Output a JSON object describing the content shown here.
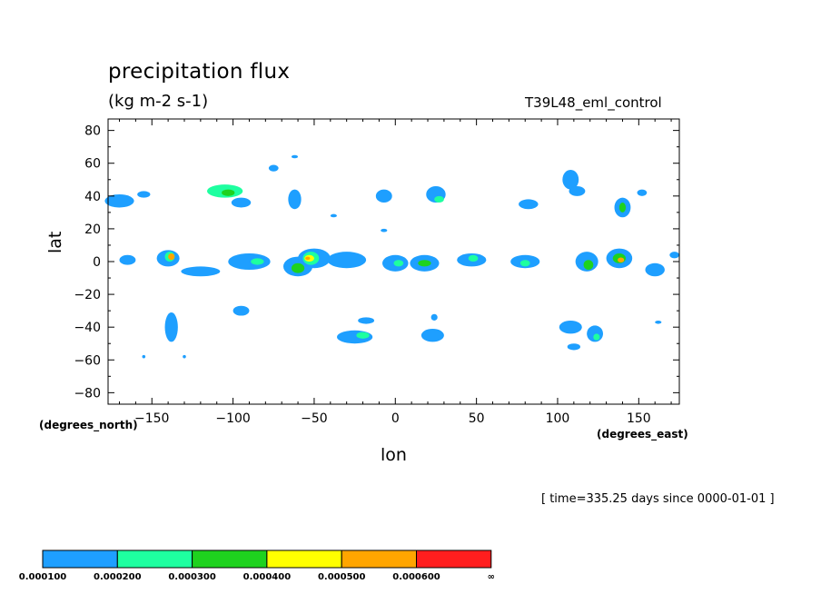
{
  "header": {
    "title": "precipitation flux",
    "units": "(kg m-2 s-1)",
    "experiment": "T39L48_eml_control"
  },
  "footer": {
    "time_label": "[ time=335.25 days since 0000-01-01 ]"
  },
  "colorbar": {
    "colors": [
      "#1e9fff",
      "#1effa0",
      "#1ed21e",
      "#ffff00",
      "#ffa500",
      "#ff1e1e"
    ],
    "labels": [
      "0.000100",
      "0.000200",
      "0.000300",
      "0.000400",
      "0.000500",
      "0.000600",
      "∞"
    ]
  },
  "chart_data": {
    "type": "heatmap",
    "title": "precipitation flux",
    "subtitle": "(kg m-2 s-1)",
    "xlabel": "lon",
    "ylabel": "lat",
    "x_units": "(degrees_east)",
    "y_units": "(degrees_north)",
    "xlim": [
      -177,
      175
    ],
    "ylim": [
      -87,
      87
    ],
    "x_ticks": [
      -150,
      -100,
      -50,
      0,
      50,
      100,
      150
    ],
    "y_ticks": [
      80,
      60,
      40,
      20,
      0,
      -20,
      -40,
      -60,
      -80
    ],
    "x_tick_labels": [
      "−150",
      "−100",
      "−50",
      "0",
      "50",
      "100",
      "150"
    ],
    "y_tick_labels": [
      "80",
      "60",
      "40",
      "20",
      "0",
      "−20",
      "−40",
      "−60",
      "−80"
    ],
    "contour_levels": [
      0.0001,
      0.0002,
      0.0003,
      0.0004,
      0.0005,
      0.0006
    ],
    "features": [
      {
        "lon": -170,
        "lat": 37,
        "rx": 9,
        "ry": 4,
        "level": 1
      },
      {
        "lon": -155,
        "lat": 41,
        "rx": 4,
        "ry": 2,
        "level": 1
      },
      {
        "lon": -105,
        "lat": 43,
        "rx": 11,
        "ry": 4,
        "level": 2
      },
      {
        "lon": -103,
        "lat": 42,
        "rx": 4,
        "ry": 2,
        "level": 3
      },
      {
        "lon": -95,
        "lat": 36,
        "rx": 6,
        "ry": 3,
        "level": 1
      },
      {
        "lon": -62,
        "lat": 38,
        "rx": 4,
        "ry": 6,
        "level": 1
      },
      {
        "lon": -75,
        "lat": 57,
        "rx": 3,
        "ry": 2,
        "level": 1
      },
      {
        "lon": -62,
        "lat": 64,
        "rx": 2,
        "ry": 1,
        "level": 1
      },
      {
        "lon": -7,
        "lat": 40,
        "rx": 5,
        "ry": 4,
        "level": 1
      },
      {
        "lon": 25,
        "lat": 41,
        "rx": 6,
        "ry": 5,
        "level": 1
      },
      {
        "lon": 27,
        "lat": 38,
        "rx": 3,
        "ry": 2,
        "level": 2
      },
      {
        "lon": 82,
        "lat": 35,
        "rx": 6,
        "ry": 3,
        "level": 1
      },
      {
        "lon": 108,
        "lat": 50,
        "rx": 5,
        "ry": 6,
        "level": 1
      },
      {
        "lon": 112,
        "lat": 43,
        "rx": 5,
        "ry": 3,
        "level": 1
      },
      {
        "lon": 140,
        "lat": 33,
        "rx": 5,
        "ry": 6,
        "level": 1
      },
      {
        "lon": 140,
        "lat": 33,
        "rx": 2,
        "ry": 3,
        "level": 3
      },
      {
        "lon": 152,
        "lat": 42,
        "rx": 3,
        "ry": 2,
        "level": 1
      },
      {
        "lon": -38,
        "lat": 28,
        "rx": 2,
        "ry": 1,
        "level": 1
      },
      {
        "lon": -7,
        "lat": 19,
        "rx": 2,
        "ry": 1,
        "level": 1
      },
      {
        "lon": -165,
        "lat": 1,
        "rx": 5,
        "ry": 3,
        "level": 1
      },
      {
        "lon": -140,
        "lat": 2,
        "rx": 7,
        "ry": 5,
        "level": 1
      },
      {
        "lon": -139,
        "lat": 3,
        "rx": 3,
        "ry": 3,
        "level": 2
      },
      {
        "lon": -138,
        "lat": 3,
        "rx": 2,
        "ry": 2,
        "level": 5
      },
      {
        "lon": -120,
        "lat": -6,
        "rx": 12,
        "ry": 3,
        "level": 1
      },
      {
        "lon": -90,
        "lat": 0,
        "rx": 13,
        "ry": 5,
        "level": 1
      },
      {
        "lon": -85,
        "lat": 0,
        "rx": 4,
        "ry": 2,
        "level": 2
      },
      {
        "lon": -60,
        "lat": -3,
        "rx": 9,
        "ry": 6,
        "level": 1
      },
      {
        "lon": -60,
        "lat": -4,
        "rx": 4,
        "ry": 3,
        "level": 3
      },
      {
        "lon": -50,
        "lat": 2,
        "rx": 10,
        "ry": 6,
        "level": 1
      },
      {
        "lon": -52,
        "lat": 2,
        "rx": 5,
        "ry": 4,
        "level": 2
      },
      {
        "lon": -53,
        "lat": 2,
        "rx": 3,
        "ry": 2,
        "level": 4
      },
      {
        "lon": -54,
        "lat": 2,
        "rx": 1.5,
        "ry": 1,
        "level": 5
      },
      {
        "lon": -30,
        "lat": 1,
        "rx": 12,
        "ry": 5,
        "level": 1
      },
      {
        "lon": 0,
        "lat": -1,
        "rx": 8,
        "ry": 5,
        "level": 1
      },
      {
        "lon": 2,
        "lat": -1,
        "rx": 3,
        "ry": 2,
        "level": 2
      },
      {
        "lon": 18,
        "lat": -1,
        "rx": 9,
        "ry": 5,
        "level": 1
      },
      {
        "lon": 18,
        "lat": -1,
        "rx": 4,
        "ry": 2,
        "level": 3
      },
      {
        "lon": 47,
        "lat": 1,
        "rx": 9,
        "ry": 4,
        "level": 1
      },
      {
        "lon": 48,
        "lat": 2,
        "rx": 3,
        "ry": 2,
        "level": 2
      },
      {
        "lon": 80,
        "lat": 0,
        "rx": 9,
        "ry": 4,
        "level": 1
      },
      {
        "lon": 80,
        "lat": -1,
        "rx": 3,
        "ry": 2,
        "level": 2
      },
      {
        "lon": 118,
        "lat": 0,
        "rx": 7,
        "ry": 6,
        "level": 1
      },
      {
        "lon": 119,
        "lat": -2,
        "rx": 3,
        "ry": 3,
        "level": 3
      },
      {
        "lon": 138,
        "lat": 2,
        "rx": 8,
        "ry": 6,
        "level": 1
      },
      {
        "lon": 138,
        "lat": 2,
        "rx": 4,
        "ry": 3,
        "level": 3
      },
      {
        "lon": 139,
        "lat": 1,
        "rx": 2,
        "ry": 1.5,
        "level": 5
      },
      {
        "lon": 160,
        "lat": -5,
        "rx": 6,
        "ry": 4,
        "level": 1
      },
      {
        "lon": 172,
        "lat": 4,
        "rx": 3,
        "ry": 2,
        "level": 1
      },
      {
        "lon": -138,
        "lat": -40,
        "rx": 4,
        "ry": 9,
        "level": 1
      },
      {
        "lon": -130,
        "lat": -58,
        "rx": 1,
        "ry": 1,
        "level": 1
      },
      {
        "lon": -155,
        "lat": -58,
        "rx": 1,
        "ry": 1,
        "level": 1
      },
      {
        "lon": -95,
        "lat": -30,
        "rx": 5,
        "ry": 3,
        "level": 1
      },
      {
        "lon": -25,
        "lat": -46,
        "rx": 11,
        "ry": 4,
        "level": 1
      },
      {
        "lon": -20,
        "lat": -45,
        "rx": 4,
        "ry": 2,
        "level": 2
      },
      {
        "lon": -18,
        "lat": -36,
        "rx": 5,
        "ry": 2,
        "level": 1
      },
      {
        "lon": 23,
        "lat": -45,
        "rx": 7,
        "ry": 4,
        "level": 1
      },
      {
        "lon": 24,
        "lat": -34,
        "rx": 2,
        "ry": 2,
        "level": 1
      },
      {
        "lon": 108,
        "lat": -40,
        "rx": 7,
        "ry": 4,
        "level": 1
      },
      {
        "lon": 110,
        "lat": -52,
        "rx": 4,
        "ry": 2,
        "level": 1
      },
      {
        "lon": 123,
        "lat": -44,
        "rx": 5,
        "ry": 5,
        "level": 1
      },
      {
        "lon": 124,
        "lat": -46,
        "rx": 2,
        "ry": 2,
        "level": 2
      },
      {
        "lon": 162,
        "lat": -37,
        "rx": 2,
        "ry": 1,
        "level": 1
      }
    ]
  }
}
